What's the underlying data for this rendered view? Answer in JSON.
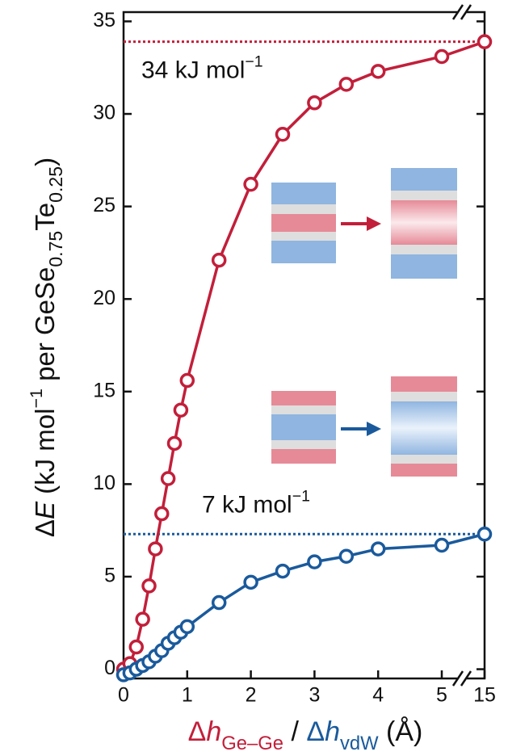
{
  "chart_data": {
    "type": "line",
    "ylabel": [
      {
        "text": "Δ"
      },
      {
        "text": "E",
        "italic": true
      },
      {
        "text": " (kJ mol"
      },
      {
        "text": "−1",
        "sup": true
      },
      {
        "text": " per GeSe"
      },
      {
        "text": "0.75",
        "sub": true
      },
      {
        "text": "Te"
      },
      {
        "text": "0.25",
        "sub": true
      },
      {
        "text": ")"
      }
    ],
    "xlabel": [
      {
        "text": "Δ",
        "color": "#c21f3a"
      },
      {
        "text": "h",
        "italic": true,
        "color": "#c21f3a"
      },
      {
        "text": "Ge–Ge",
        "sub": true,
        "color": "#c21f3a"
      },
      {
        "text": " / "
      },
      {
        "text": "Δ",
        "color": "#1a5a9c"
      },
      {
        "text": "h",
        "italic": true,
        "color": "#1a5a9c"
      },
      {
        "text": "vdW",
        "sub": true,
        "color": "#1a5a9c"
      },
      {
        "text": " (Å)"
      }
    ],
    "x": [
      0,
      0.1,
      0.2,
      0.3,
      0.4,
      0.5,
      0.6,
      0.7,
      0.8,
      0.9,
      1.0,
      1.5,
      2,
      2.5,
      3,
      3.5,
      4,
      5,
      15
    ],
    "series": [
      {
        "color": "#c21f3a",
        "values": [
          0,
          0.3,
          1.2,
          2.7,
          4.5,
          6.5,
          8.4,
          10.3,
          12.2,
          14.0,
          15.6,
          22.1,
          26.2,
          28.9,
          30.6,
          31.6,
          32.3,
          33.1,
          33.9
        ]
      },
      {
        "color": "#1a5a9c",
        "values": [
          -0.3,
          -0.2,
          0,
          0.2,
          0.4,
          0.7,
          1.0,
          1.4,
          1.7,
          2.0,
          2.3,
          3.6,
          4.7,
          5.3,
          5.8,
          6.1,
          6.5,
          6.7,
          7.3
        ]
      }
    ],
    "hlines": [
      {
        "value": 33.9,
        "color": "#c21f3a",
        "label": [
          {
            "text": "34 kJ mol"
          },
          {
            "text": "−1",
            "sup": true
          }
        ]
      },
      {
        "value": 7.3,
        "color": "#1a5a9c",
        "label": [
          {
            "text": "7 kJ mol"
          },
          {
            "text": "−1",
            "sup": true
          }
        ]
      }
    ],
    "xlim": [
      0,
      15
    ],
    "xticks": [
      0,
      1,
      2,
      3,
      4,
      5,
      15
    ],
    "x_break": true,
    "ylim": [
      -0.5,
      35.5
    ],
    "yticks": [
      0,
      5,
      10,
      15,
      20,
      25,
      30,
      35
    ]
  }
}
